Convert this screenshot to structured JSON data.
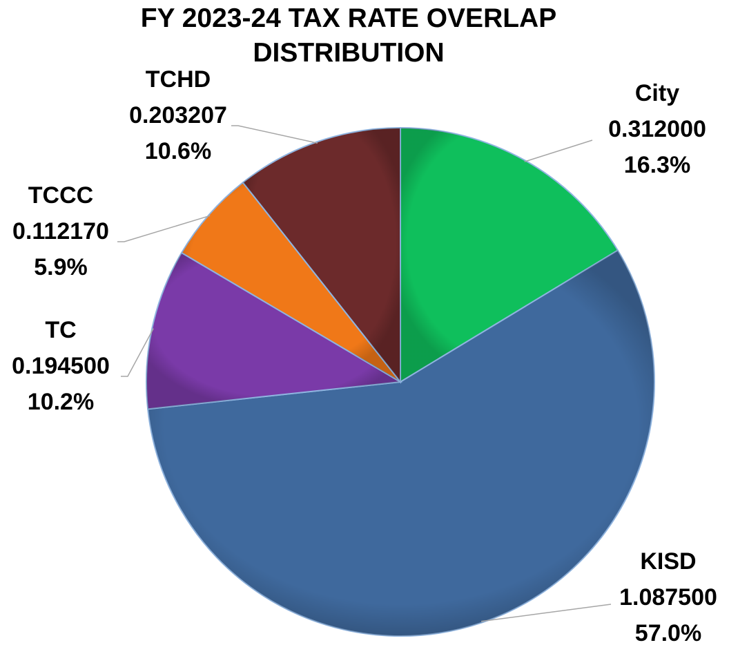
{
  "chart_data": {
    "type": "pie",
    "title": "FY 2023-24 TAX RATE OVERLAP DISTRIBUTION",
    "categories": [
      "City",
      "KISD",
      "TC",
      "TCCC",
      "TCHD"
    ],
    "values": [
      0.312,
      1.0875,
      0.1945,
      0.11217,
      0.203207
    ],
    "value_labels": [
      "0.312000",
      "1.087500",
      "0.194500",
      "0.112170",
      "0.203207"
    ],
    "percentages": [
      16.3,
      57.0,
      10.2,
      5.9,
      10.6
    ],
    "percentage_labels": [
      "16.3%",
      "57.0%",
      "10.2%",
      "5.9%",
      "10.6%"
    ],
    "colors": [
      "#0fbf5c",
      "#3f699d",
      "#7a3aa8",
      "#f07818",
      "#6c2a2b"
    ]
  }
}
